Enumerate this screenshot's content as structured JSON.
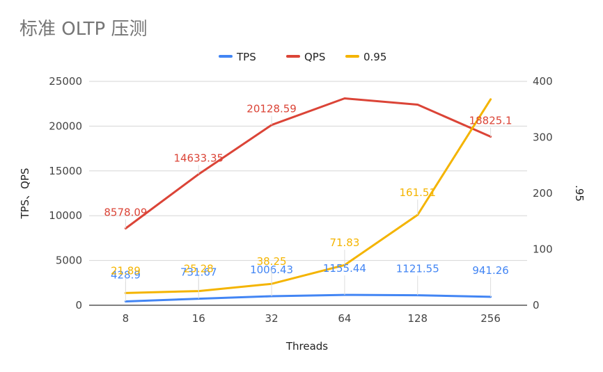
{
  "chart_data": {
    "type": "line",
    "title": "标准 OLTP 压测",
    "xlabel": "Threads",
    "ylabel_left": "TPS、QPS",
    "ylabel_right": ".95",
    "categories": [
      "8",
      "16",
      "32",
      "64",
      "128",
      "256"
    ],
    "y_left": {
      "min": 0,
      "max": 25000,
      "ticks": [
        "0",
        "5000",
        "10000",
        "15000",
        "20000",
        "25000"
      ]
    },
    "y_right": {
      "min": 0,
      "max": 400,
      "ticks": [
        "0",
        "100",
        "200",
        "300",
        "400"
      ]
    },
    "legend_position": "top-center",
    "grid": true,
    "series": [
      {
        "name": "TPS",
        "axis": "left",
        "color": "#4285f4",
        "values": [
          428.9,
          731.67,
          1006.43,
          1155.44,
          1121.55,
          941.26
        ],
        "labels": [
          "428.9",
          "731.67",
          "1006.43",
          "1155.44",
          "1121.55",
          "941.26"
        ]
      },
      {
        "name": "QPS",
        "axis": "left",
        "color": "#db4437",
        "values": [
          8578.09,
          14633.35,
          20128.59,
          23100,
          22400,
          18825.1
        ],
        "labels": [
          "8578.09",
          "14633.35",
          "20128.59",
          "",
          "",
          "18825.1"
        ]
      },
      {
        "name": "0.95",
        "axis": "right",
        "color": "#f4b400",
        "values": [
          21.89,
          25.28,
          38.25,
          71.83,
          161.51,
          368
        ],
        "labels": [
          "21.89",
          "25.28",
          "38.25",
          "71.83",
          "161.51",
          ""
        ]
      }
    ]
  }
}
